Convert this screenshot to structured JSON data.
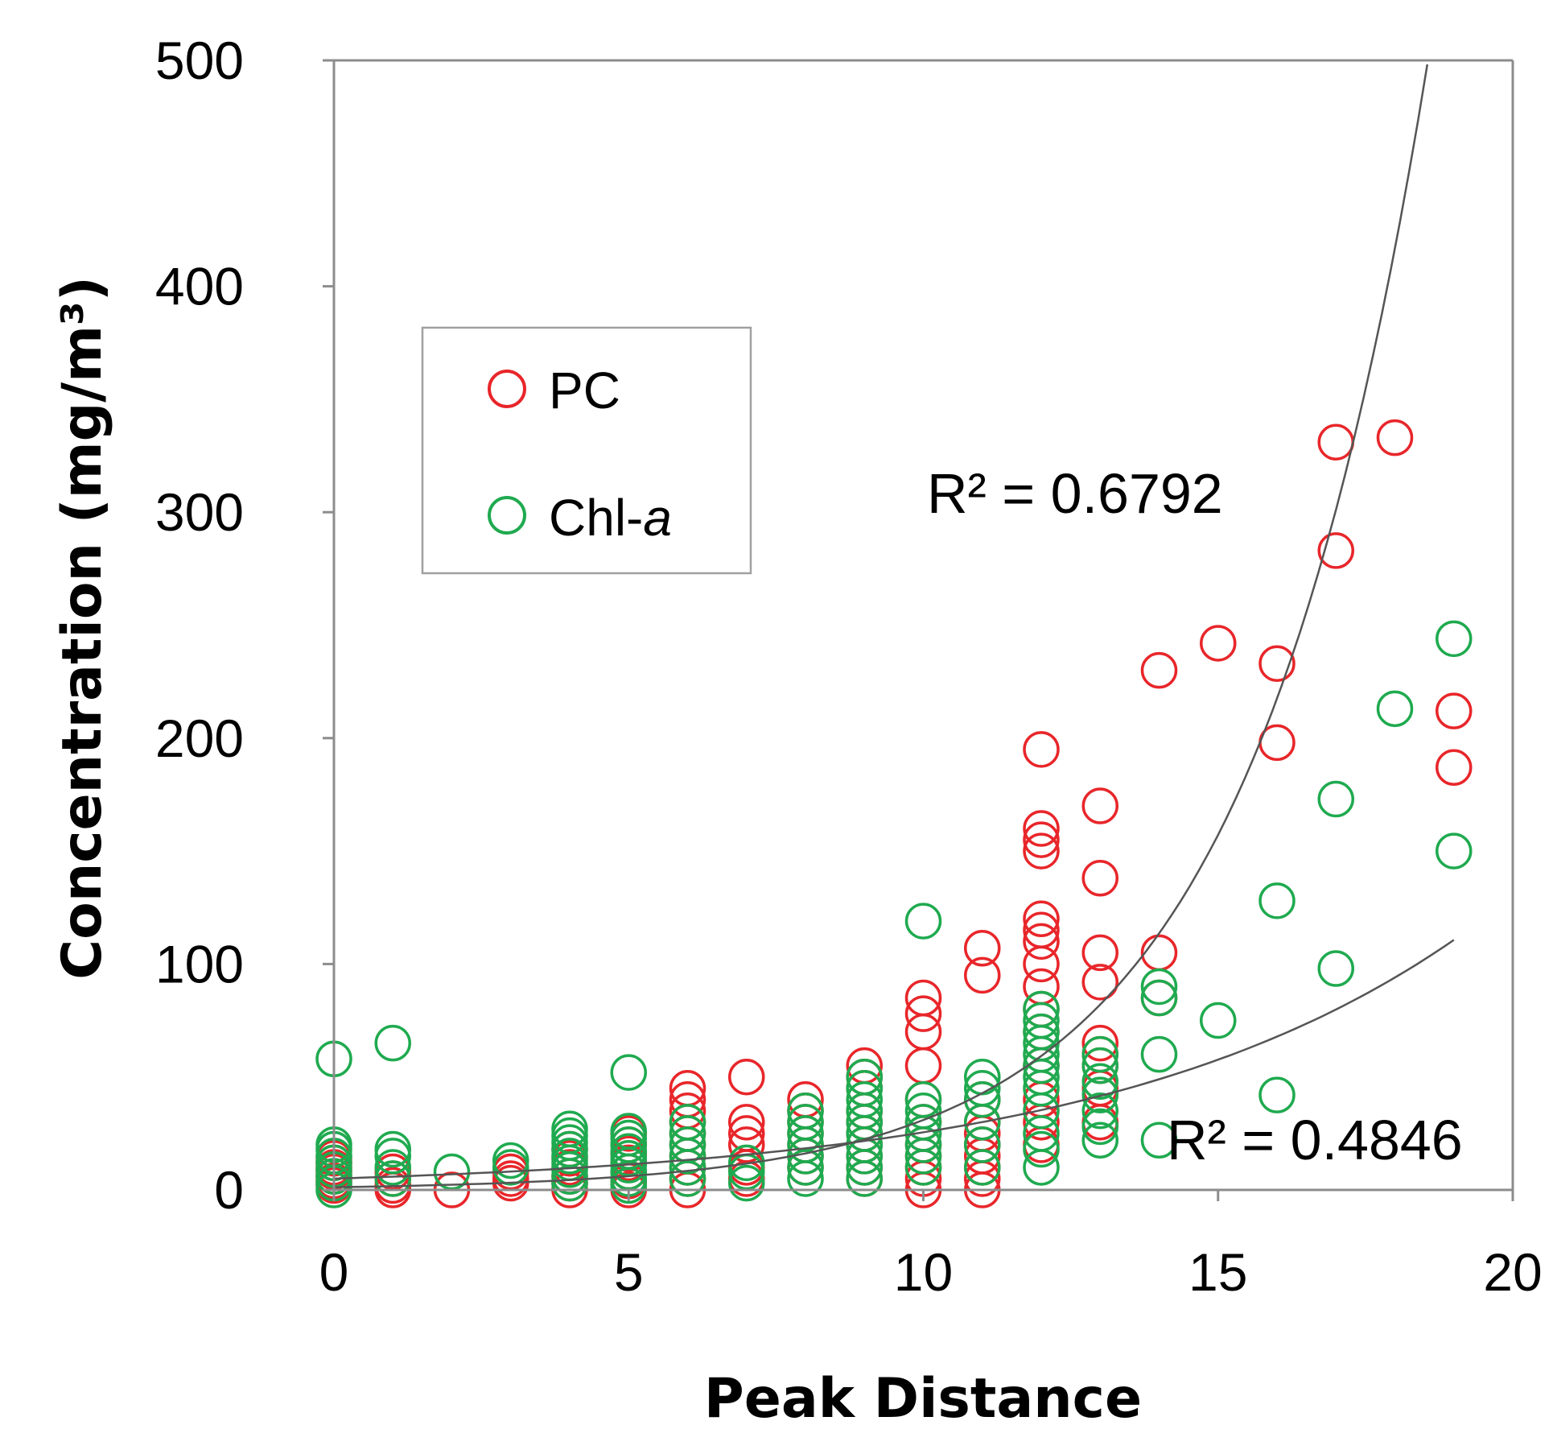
{
  "chart_data": {
    "type": "scatter",
    "title": "",
    "xlabel": "Peak Distance",
    "ylabel": "Concentration (mg/m³)",
    "xlim": [
      0,
      20
    ],
    "ylim": [
      0,
      500
    ],
    "xticks": [
      0,
      5,
      10,
      15,
      20
    ],
    "yticks": [
      0,
      100,
      200,
      300,
      400,
      500
    ],
    "grid": false,
    "legend_position": "upper-left",
    "colors": {
      "PC": "#e8262a",
      "Chl-a": "#1faa4f",
      "trend": "#555555",
      "axis": "#8c8c8c"
    },
    "series": [
      {
        "name": "PC",
        "legend_label": "PC",
        "color": "#e8262a",
        "points": [
          [
            0,
            2
          ],
          [
            0,
            4
          ],
          [
            0,
            6
          ],
          [
            0,
            8
          ],
          [
            0,
            10
          ],
          [
            0,
            12
          ],
          [
            0,
            14
          ],
          [
            1,
            0
          ],
          [
            1,
            2
          ],
          [
            1,
            5
          ],
          [
            1,
            8
          ],
          [
            2,
            0
          ],
          [
            3,
            3
          ],
          [
            3,
            5
          ],
          [
            3,
            8
          ],
          [
            4,
            0
          ],
          [
            4,
            3
          ],
          [
            4,
            6
          ],
          [
            4,
            10
          ],
          [
            4,
            14
          ],
          [
            4,
            18
          ],
          [
            5,
            0
          ],
          [
            5,
            4
          ],
          [
            5,
            8
          ],
          [
            5,
            12
          ],
          [
            5,
            16
          ],
          [
            5,
            20
          ],
          [
            5,
            25
          ],
          [
            6,
            0
          ],
          [
            6,
            5
          ],
          [
            6,
            10
          ],
          [
            6,
            15
          ],
          [
            6,
            20
          ],
          [
            6,
            25
          ],
          [
            6,
            30
          ],
          [
            6,
            35
          ],
          [
            6,
            40
          ],
          [
            6,
            45
          ],
          [
            7,
            5
          ],
          [
            7,
            10
          ],
          [
            7,
            20
          ],
          [
            7,
            25
          ],
          [
            7,
            30
          ],
          [
            7,
            50
          ],
          [
            8,
            10
          ],
          [
            8,
            15
          ],
          [
            8,
            20
          ],
          [
            8,
            25
          ],
          [
            8,
            30
          ],
          [
            8,
            35
          ],
          [
            8,
            40
          ],
          [
            9,
            5
          ],
          [
            9,
            10
          ],
          [
            9,
            15
          ],
          [
            9,
            20
          ],
          [
            9,
            25
          ],
          [
            9,
            30
          ],
          [
            9,
            35
          ],
          [
            9,
            45
          ],
          [
            9,
            50
          ],
          [
            9,
            55
          ],
          [
            10,
            0
          ],
          [
            10,
            5
          ],
          [
            10,
            10
          ],
          [
            10,
            15
          ],
          [
            10,
            20
          ],
          [
            10,
            25
          ],
          [
            10,
            30
          ],
          [
            10,
            40
          ],
          [
            10,
            55
          ],
          [
            10,
            70
          ],
          [
            10,
            78
          ],
          [
            10,
            85
          ],
          [
            11,
            0
          ],
          [
            11,
            5
          ],
          [
            11,
            10
          ],
          [
            11,
            15
          ],
          [
            11,
            20
          ],
          [
            11,
            25
          ],
          [
            11,
            30
          ],
          [
            11,
            40
          ],
          [
            11,
            95
          ],
          [
            11,
            107
          ],
          [
            12,
            20
          ],
          [
            12,
            30
          ],
          [
            12,
            40
          ],
          [
            12,
            55
          ],
          [
            12,
            70
          ],
          [
            12,
            80
          ],
          [
            12,
            90
          ],
          [
            12,
            100
          ],
          [
            12,
            110
          ],
          [
            12,
            115
          ],
          [
            12,
            120
          ],
          [
            12,
            150
          ],
          [
            12,
            155
          ],
          [
            12,
            160
          ],
          [
            12,
            195
          ],
          [
            13,
            30
          ],
          [
            13,
            45
          ],
          [
            13,
            55
          ],
          [
            13,
            60
          ],
          [
            13,
            65
          ],
          [
            13,
            92
          ],
          [
            13,
            105
          ],
          [
            13,
            138
          ],
          [
            13,
            170
          ],
          [
            14,
            85
          ],
          [
            14,
            105
          ],
          [
            14,
            230
          ],
          [
            15,
            242
          ],
          [
            16,
            198
          ],
          [
            16,
            233
          ],
          [
            17,
            283
          ],
          [
            17,
            331
          ],
          [
            18,
            333
          ],
          [
            19,
            187
          ],
          [
            19,
            212
          ]
        ]
      },
      {
        "name": "Chl-a",
        "legend_label": "Chl-",
        "legend_label_italic": "a",
        "color": "#1faa4f",
        "points": [
          [
            0,
            0
          ],
          [
            0,
            3
          ],
          [
            0,
            6
          ],
          [
            0,
            9
          ],
          [
            0,
            12
          ],
          [
            0,
            15
          ],
          [
            0,
            18
          ],
          [
            0,
            20
          ],
          [
            0,
            58
          ],
          [
            1,
            5
          ],
          [
            1,
            10
          ],
          [
            1,
            15
          ],
          [
            1,
            18
          ],
          [
            1,
            65
          ],
          [
            2,
            8
          ],
          [
            3,
            10
          ],
          [
            3,
            13
          ],
          [
            4,
            3
          ],
          [
            4,
            6
          ],
          [
            4,
            9
          ],
          [
            4,
            12
          ],
          [
            4,
            15
          ],
          [
            4,
            18
          ],
          [
            4,
            21
          ],
          [
            4,
            24
          ],
          [
            4,
            27
          ],
          [
            5,
            2
          ],
          [
            5,
            5
          ],
          [
            5,
            8
          ],
          [
            5,
            11
          ],
          [
            5,
            14
          ],
          [
            5,
            17
          ],
          [
            5,
            20
          ],
          [
            5,
            23
          ],
          [
            5,
            26
          ],
          [
            5,
            52
          ],
          [
            6,
            5
          ],
          [
            6,
            10
          ],
          [
            6,
            15
          ],
          [
            6,
            20
          ],
          [
            6,
            25
          ],
          [
            6,
            30
          ],
          [
            7,
            3
          ],
          [
            7,
            8
          ],
          [
            7,
            12
          ],
          [
            8,
            5
          ],
          [
            8,
            10
          ],
          [
            8,
            15
          ],
          [
            8,
            20
          ],
          [
            8,
            25
          ],
          [
            8,
            30
          ],
          [
            8,
            35
          ],
          [
            9,
            5
          ],
          [
            9,
            10
          ],
          [
            9,
            15
          ],
          [
            9,
            20
          ],
          [
            9,
            25
          ],
          [
            9,
            30
          ],
          [
            9,
            35
          ],
          [
            9,
            40
          ],
          [
            9,
            45
          ],
          [
            9,
            50
          ],
          [
            10,
            10
          ],
          [
            10,
            15
          ],
          [
            10,
            20
          ],
          [
            10,
            25
          ],
          [
            10,
            30
          ],
          [
            10,
            35
          ],
          [
            10,
            40
          ],
          [
            10,
            119
          ],
          [
            11,
            10
          ],
          [
            11,
            20
          ],
          [
            11,
            30
          ],
          [
            11,
            40
          ],
          [
            11,
            45
          ],
          [
            11,
            50
          ],
          [
            12,
            10
          ],
          [
            12,
            18
          ],
          [
            12,
            25
          ],
          [
            12,
            35
          ],
          [
            12,
            45
          ],
          [
            12,
            50
          ],
          [
            12,
            55
          ],
          [
            12,
            60
          ],
          [
            12,
            65
          ],
          [
            12,
            70
          ],
          [
            12,
            75
          ],
          [
            12,
            80
          ],
          [
            13,
            22
          ],
          [
            13,
            28
          ],
          [
            13,
            35
          ],
          [
            13,
            42
          ],
          [
            13,
            48
          ],
          [
            13,
            55
          ],
          [
            13,
            60
          ],
          [
            14,
            22
          ],
          [
            14,
            60
          ],
          [
            14,
            85
          ],
          [
            14,
            90
          ],
          [
            15,
            75
          ],
          [
            16,
            42
          ],
          [
            16,
            128
          ],
          [
            17,
            98
          ],
          [
            17,
            173
          ],
          [
            18,
            213
          ],
          [
            19,
            150
          ],
          [
            19,
            244
          ]
        ]
      }
    ],
    "trendlines": [
      {
        "series": "PC",
        "type": "exponential",
        "a": 1.2,
        "b": 0.325,
        "x_range": [
          0,
          18.55
        ],
        "label": "R² = 0.6792"
      },
      {
        "series": "Chl-a",
        "type": "exponential",
        "a": 5.0,
        "b": 0.163,
        "x_range": [
          0,
          19
        ],
        "label": "R² = 0.4846"
      }
    ]
  }
}
